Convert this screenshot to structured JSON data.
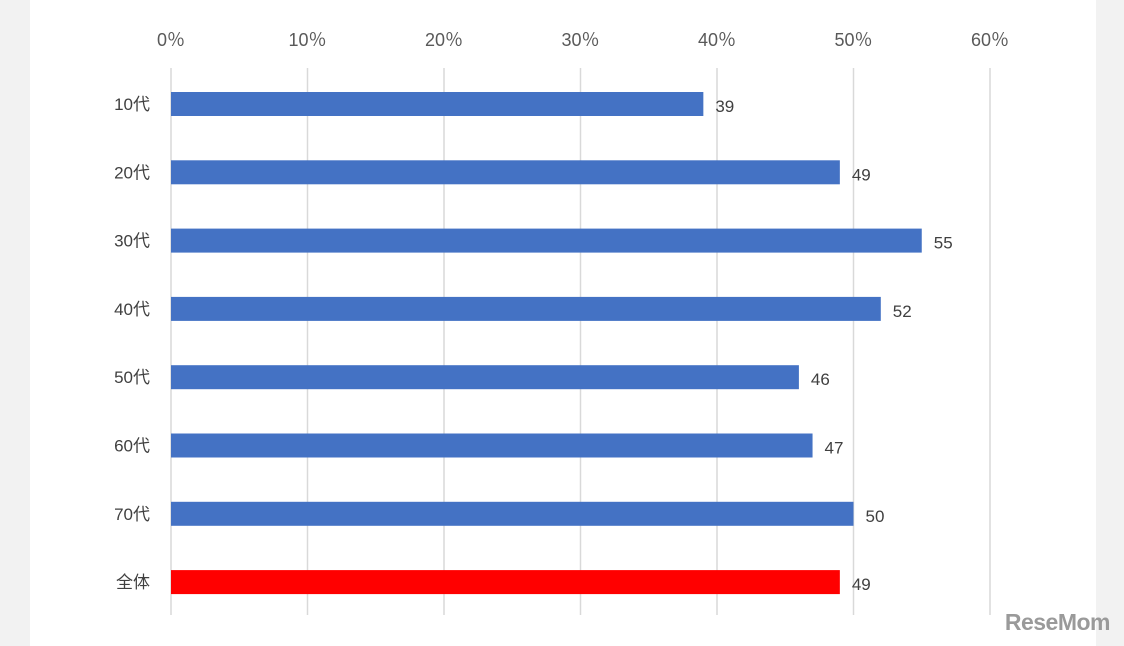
{
  "chart_data": {
    "type": "bar",
    "orientation": "horizontal",
    "categories": [
      "10代",
      "20代",
      "30代",
      "40代",
      "50代",
      "60代",
      "70代",
      "全体"
    ],
    "values": [
      39,
      49,
      55,
      52,
      46,
      47,
      50,
      49
    ],
    "colors": [
      "#4472c4",
      "#4472c4",
      "#4472c4",
      "#4472c4",
      "#4472c4",
      "#4472c4",
      "#4472c4",
      "#ff0000"
    ],
    "x_ticks": [
      0,
      10,
      20,
      30,
      40,
      50,
      60
    ],
    "x_tick_labels": [
      "0％",
      "10％",
      "20％",
      "30％",
      "40％",
      "50％",
      "60％"
    ],
    "xlim": [
      0,
      60
    ],
    "grid": true,
    "axis_position": "top",
    "title": "",
    "xlabel": "",
    "ylabel": ""
  },
  "watermark": "ReseMom"
}
